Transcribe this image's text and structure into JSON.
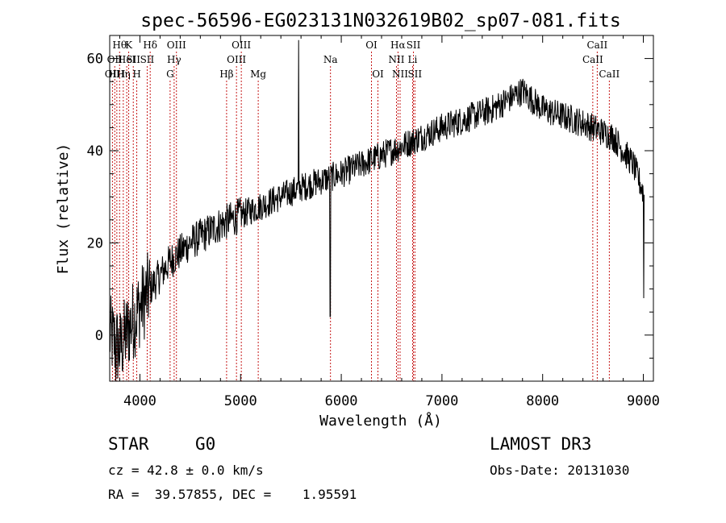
{
  "chart_data": {
    "type": "line",
    "title": "spec-56596-EG023131N032619B02_sp07-081.fits",
    "xlabel": "Wavelength (Å)",
    "ylabel": "Flux (relative)",
    "xlim": [
      3700,
      9100
    ],
    "ylim": [
      -10,
      65
    ],
    "xticks": [
      4000,
      5000,
      6000,
      7000,
      8000,
      9000
    ],
    "yticks": [
      0,
      20,
      40,
      60
    ],
    "spectrum_anchors": [
      {
        "x": 3700,
        "y": 0
      },
      {
        "x": 3800,
        "y": -3
      },
      {
        "x": 3900,
        "y": 2
      },
      {
        "x": 4000,
        "y": 6
      },
      {
        "x": 4100,
        "y": 10
      },
      {
        "x": 4300,
        "y": 16
      },
      {
        "x": 4500,
        "y": 20
      },
      {
        "x": 4800,
        "y": 24
      },
      {
        "x": 5000,
        "y": 26
      },
      {
        "x": 5300,
        "y": 29
      },
      {
        "x": 5600,
        "y": 32
      },
      {
        "x": 6000,
        "y": 35
      },
      {
        "x": 6500,
        "y": 40
      },
      {
        "x": 7000,
        "y": 45
      },
      {
        "x": 7500,
        "y": 49
      },
      {
        "x": 7800,
        "y": 53
      },
      {
        "x": 8000,
        "y": 49
      },
      {
        "x": 8400,
        "y": 46
      },
      {
        "x": 8700,
        "y": 43
      },
      {
        "x": 8900,
        "y": 37
      },
      {
        "x": 9000,
        "y": 31
      }
    ],
    "spikes": [
      {
        "x": 5577,
        "y": 64
      },
      {
        "x": 5890,
        "y": 4
      },
      {
        "x": 3760,
        "y": -10
      },
      {
        "x": 9005,
        "y": 8
      }
    ],
    "line_markers": [
      {
        "x": 3727,
        "row": 2,
        "label": "OII"
      },
      {
        "x": 3750,
        "row": 1,
        "label": "OII"
      },
      {
        "x": 3771,
        "row": 2,
        "label": "HH"
      },
      {
        "x": 3798,
        "row": 0,
        "label": "Hθ"
      },
      {
        "x": 3835,
        "row": 2,
        "label": "Hη"
      },
      {
        "x": 3869,
        "row": 1,
        "label": "HeI"
      },
      {
        "x": 3889,
        "row": 0,
        "label": "K"
      },
      {
        "x": 3934,
        "row": 1,
        "label": "SII"
      },
      {
        "x": 3969,
        "row": 2,
        "label": "H"
      },
      {
        "x": 4102,
        "row": 0,
        "label": "Hδ"
      },
      {
        "x": 4072,
        "row": 1,
        "label": "SII"
      },
      {
        "x": 4300,
        "row": 2,
        "label": "G"
      },
      {
        "x": 4340,
        "row": 1,
        "label": "Hγ"
      },
      {
        "x": 4363,
        "row": 0,
        "label": "OIII"
      },
      {
        "x": 4861,
        "row": 2,
        "label": "Hβ"
      },
      {
        "x": 4959,
        "row": 1,
        "label": "OIII"
      },
      {
        "x": 5007,
        "row": 0,
        "label": "OIII"
      },
      {
        "x": 5175,
        "row": 2,
        "label": "Mg"
      },
      {
        "x": 5893,
        "row": 1,
        "label": "Na"
      },
      {
        "x": 6300,
        "row": 0,
        "label": "OI"
      },
      {
        "x": 6364,
        "row": 2,
        "label": "OI"
      },
      {
        "x": 6548,
        "row": 1,
        "label": "NII"
      },
      {
        "x": 6563,
        "row": 0,
        "label": "Hα"
      },
      {
        "x": 6584,
        "row": 2,
        "label": "NII"
      },
      {
        "x": 6708,
        "row": 1,
        "label": "Li"
      },
      {
        "x": 6717,
        "row": 0,
        "label": "SII"
      },
      {
        "x": 6731,
        "row": 2,
        "label": "SII"
      },
      {
        "x": 8498,
        "row": 1,
        "label": "CaII"
      },
      {
        "x": 8542,
        "row": 0,
        "label": "CaII"
      },
      {
        "x": 8662,
        "row": 2,
        "label": "CaII"
      }
    ]
  },
  "info": {
    "object_class": "STAR",
    "subclass": "G0",
    "survey": "LAMOST DR3",
    "cz": "cz = 42.8 ± 0.0 km/s",
    "obs_date": "Obs-Date: 20131030",
    "ra_dec": "RA =  39.57855, DEC =    1.95591"
  }
}
